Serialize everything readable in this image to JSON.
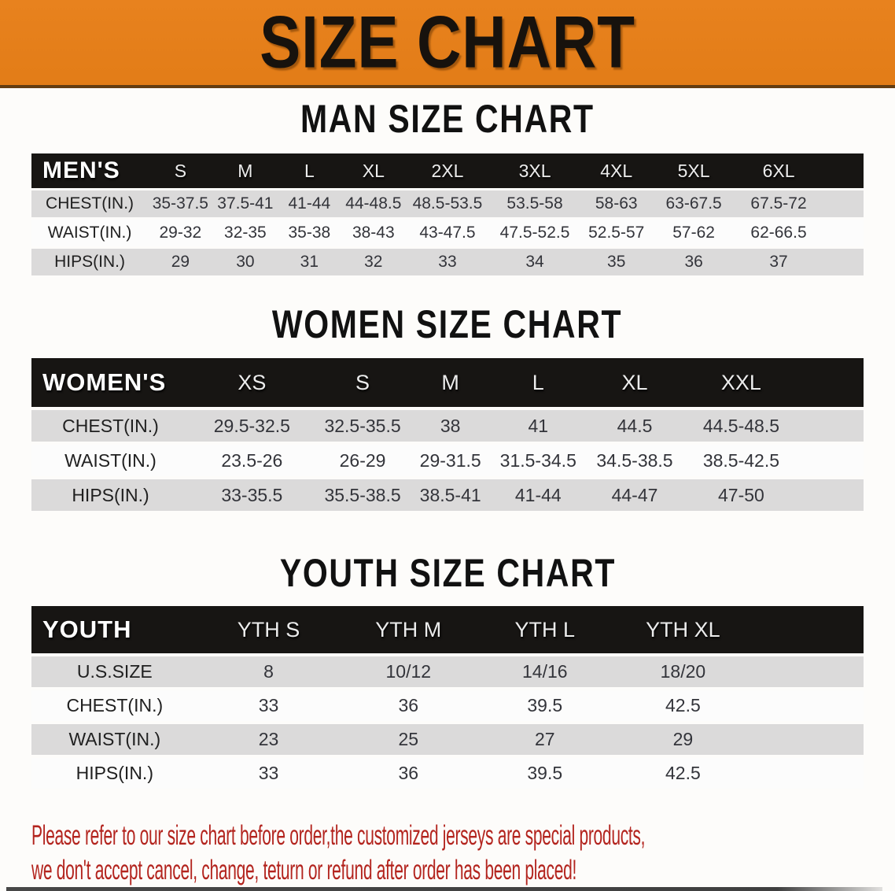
{
  "banner": {
    "title": "SIZE CHART"
  },
  "sections": {
    "men": {
      "title": "MAN SIZE CHART",
      "table": {
        "corner_label": "MEN'S",
        "sizes": [
          "S",
          "M",
          "L",
          "XL",
          "2XL",
          "3XL",
          "4XL",
          "5XL",
          "6XL"
        ],
        "rows": [
          {
            "label": "CHEST(IN.)",
            "values": [
              "35-37.5",
              "37.5-41",
              "41-44",
              "44-48.5",
              "48.5-53.5",
              "53.5-58",
              "58-63",
              "63-67.5",
              "67.5-72"
            ]
          },
          {
            "label": "WAIST(IN.)",
            "values": [
              "29-32",
              "32-35",
              "35-38",
              "38-43",
              "43-47.5",
              "47.5-52.5",
              "52.5-57",
              "57-62",
              "62-66.5"
            ]
          },
          {
            "label": "HIPS(IN.)",
            "values": [
              "29",
              "30",
              "31",
              "32",
              "33",
              "34",
              "35",
              "36",
              "37"
            ]
          }
        ]
      }
    },
    "women": {
      "title": "WOMEN SIZE CHART",
      "table": {
        "corner_label": "WOMEN'S",
        "sizes": [
          "XS",
          "S",
          "M",
          "L",
          "XL",
          "XXL"
        ],
        "rows": [
          {
            "label": "CHEST(IN.)",
            "values": [
              "29.5-32.5",
              "32.5-35.5",
              "38",
              "41",
              "44.5",
              "44.5-48.5"
            ]
          },
          {
            "label": "WAIST(IN.)",
            "values": [
              "23.5-26",
              "26-29",
              "29-31.5",
              "31.5-34.5",
              "34.5-38.5",
              "38.5-42.5"
            ]
          },
          {
            "label": "HIPS(IN.)",
            "values": [
              "33-35.5",
              "35.5-38.5",
              "38.5-41",
              "41-44",
              "44-47",
              "47-50"
            ]
          }
        ]
      }
    },
    "youth": {
      "title": "YOUTH SIZE CHART",
      "table": {
        "corner_label": "YOUTH",
        "sizes": [
          "YTH S",
          "YTH M",
          "YTH L",
          "YTH XL"
        ],
        "rows": [
          {
            "label": "U.S.SIZE",
            "values": [
              "8",
              "10/12",
              "14/16",
              "18/20"
            ]
          },
          {
            "label": "CHEST(IN.)",
            "values": [
              "33",
              "36",
              "39.5",
              "42.5"
            ]
          },
          {
            "label": "WAIST(IN.)",
            "values": [
              "23",
              "25",
              "27",
              "29"
            ]
          },
          {
            "label": "HIPS(IN.)",
            "values": [
              "33",
              "36",
              "39.5",
              "42.5"
            ]
          }
        ]
      }
    }
  },
  "disclaimer": {
    "line1": "Please refer to our size chart before order,the customized jerseys are special products,",
    "line2": "we don't accept cancel, change, teturn or refund after order has been placed!"
  },
  "colors": {
    "banner_orange": "#E8821E",
    "header_black": "#171513",
    "row_gray": "#DBDADA",
    "row_white": "#FCFCFC",
    "disclaimer_red": "#B3241E"
  }
}
